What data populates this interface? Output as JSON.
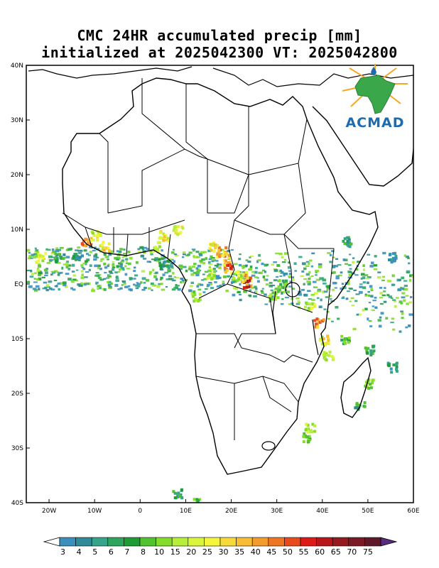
{
  "title_line1": "CMC 24HR accumulated precip [mm]",
  "title_line2": "initialized at 2025042300 VT: 2025042800",
  "logo": {
    "text": "ACMAD",
    "icon": "africa-map-logo-icon"
  },
  "axes": {
    "lat_labels": [
      "40N",
      "30N",
      "20N",
      "10N",
      "EQ",
      "10S",
      "20S",
      "30S",
      "40S"
    ],
    "lat_values": [
      40,
      30,
      20,
      10,
      0,
      -10,
      -20,
      -30,
      -40
    ],
    "lon_labels": [
      "20W",
      "10W",
      "0",
      "10E",
      "20E",
      "30E",
      "40E",
      "50E",
      "60E"
    ],
    "lon_values": [
      -20,
      -10,
      0,
      10,
      20,
      30,
      40,
      50,
      60
    ]
  },
  "colorbar": {
    "labels": [
      "3",
      "4",
      "5",
      "6",
      "7",
      "8",
      "10",
      "15",
      "20",
      "25",
      "30",
      "35",
      "40",
      "45",
      "50",
      "55",
      "60",
      "65",
      "70",
      "75"
    ],
    "colors": [
      "#3a8fbd",
      "#2f8a9a",
      "#35a48a",
      "#2ea55d",
      "#1e9d36",
      "#52c22e",
      "#84dc2c",
      "#b6ee39",
      "#dbf53c",
      "#f5f53e",
      "#f8d93a",
      "#f7bd33",
      "#f39b2c",
      "#ee7524",
      "#e8491d",
      "#dc1a16",
      "#b81618",
      "#951a1f",
      "#7a1a24",
      "#5e1a2a",
      "#5a2c7c"
    ]
  },
  "map_data": {
    "precip_cells": [
      {
        "lon": 17.5,
        "lat": 6,
        "v": 60
      },
      {
        "lon": 18.5,
        "lat": 5,
        "v": 45
      },
      {
        "lon": 16,
        "lat": 7,
        "v": 40
      },
      {
        "lon": 23,
        "lat": 0.5,
        "v": 75
      },
      {
        "lon": 22.5,
        "lat": 1.5,
        "v": 50
      },
      {
        "lon": 21,
        "lat": 2,
        "v": 30
      },
      {
        "lon": -12,
        "lat": 8,
        "v": 55
      },
      {
        "lon": -8,
        "lat": 7,
        "v": 45
      },
      {
        "lon": -10,
        "lat": 9,
        "v": 35
      },
      {
        "lon": 5,
        "lat": 9,
        "v": 40
      },
      {
        "lon": 8,
        "lat": 10,
        "v": 35
      },
      {
        "lon": 3,
        "lat": 7,
        "v": 25
      },
      {
        "lon": 19,
        "lat": 3,
        "v": 60
      },
      {
        "lon": 15,
        "lat": 2,
        "v": 25
      },
      {
        "lon": 12,
        "lat": -2,
        "v": 20
      },
      {
        "lon": 39,
        "lat": -7,
        "v": 55
      },
      {
        "lon": 40,
        "lat": -10,
        "v": 40
      },
      {
        "lon": 37,
        "lat": -4,
        "v": 30
      },
      {
        "lon": 41,
        "lat": -13,
        "v": 25
      },
      {
        "lon": 37,
        "lat": -26,
        "v": 25
      },
      {
        "lon": 36,
        "lat": -28,
        "v": 15
      },
      {
        "lon": 29,
        "lat": -2,
        "v": 20
      },
      {
        "lon": 31,
        "lat": 0,
        "v": 15
      },
      {
        "lon": -22,
        "lat": 5,
        "v": 30
      },
      {
        "lon": -18,
        "lat": 5,
        "v": 10
      },
      {
        "lon": -14,
        "lat": 5,
        "v": 8
      },
      {
        "lon": 5,
        "lat": 4,
        "v": 8
      },
      {
        "lon": 45,
        "lat": -10,
        "v": 15
      },
      {
        "lon": 50,
        "lat": -12,
        "v": 10
      },
      {
        "lon": 55,
        "lat": -15,
        "v": 8
      },
      {
        "lon": 50,
        "lat": -18,
        "v": 20
      },
      {
        "lon": 48,
        "lat": -22,
        "v": 10
      },
      {
        "lon": 8,
        "lat": -38,
        "v": 10
      },
      {
        "lon": 12,
        "lat": -40,
        "v": 15
      },
      {
        "lon": 45,
        "lat": 8,
        "v": 10
      },
      {
        "lon": 55,
        "lat": 5,
        "v": 6
      }
    ]
  }
}
